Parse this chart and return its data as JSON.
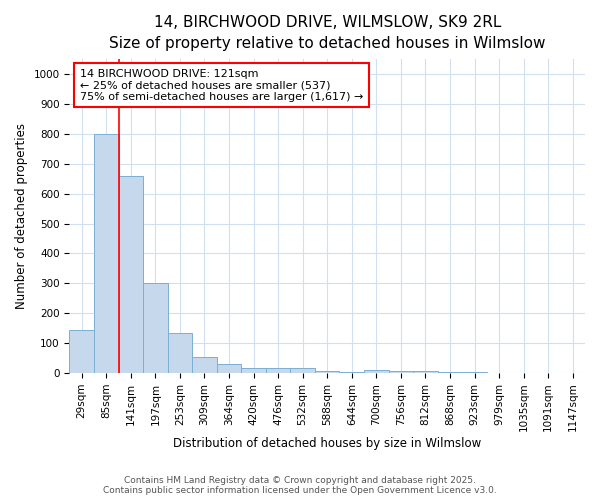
{
  "title_line1": "14, BIRCHWOOD DRIVE, WILMSLOW, SK9 2RL",
  "title_line2": "Size of property relative to detached houses in Wilmslow",
  "xlabel": "Distribution of detached houses by size in Wilmslow",
  "ylabel": "Number of detached properties",
  "bar_color": "#c6d9ec",
  "bar_edge_color": "#7bafd4",
  "categories": [
    "29sqm",
    "85sqm",
    "141sqm",
    "197sqm",
    "253sqm",
    "309sqm",
    "364sqm",
    "420sqm",
    "476sqm",
    "532sqm",
    "588sqm",
    "644sqm",
    "700sqm",
    "756sqm",
    "812sqm",
    "868sqm",
    "923sqm",
    "979sqm",
    "1035sqm",
    "1091sqm",
    "1147sqm"
  ],
  "values": [
    145,
    800,
    660,
    300,
    135,
    52,
    30,
    18,
    18,
    15,
    5,
    3,
    10,
    8,
    5,
    3,
    2,
    1,
    1,
    0,
    0
  ],
  "ylim": [
    0,
    1050
  ],
  "yticks": [
    0,
    100,
    200,
    300,
    400,
    500,
    600,
    700,
    800,
    900,
    1000
  ],
  "property_label": "14 BIRCHWOOD DRIVE: 121sqm",
  "annotation_line1": "← 25% of detached houses are smaller (537)",
  "annotation_line2": "75% of semi-detached houses are larger (1,617) →",
  "red_line_x": 1.5,
  "background_color": "#ffffff",
  "grid_color": "#d0e0f0",
  "title_fontsize": 11,
  "subtitle_fontsize": 9.5,
  "axis_label_fontsize": 8.5,
  "tick_fontsize": 7.5,
  "annotation_fontsize": 8,
  "footer_fontsize": 6.5,
  "footer_line1": "Contains HM Land Registry data © Crown copyright and database right 2025.",
  "footer_line2": "Contains public sector information licensed under the Open Government Licence v3.0."
}
